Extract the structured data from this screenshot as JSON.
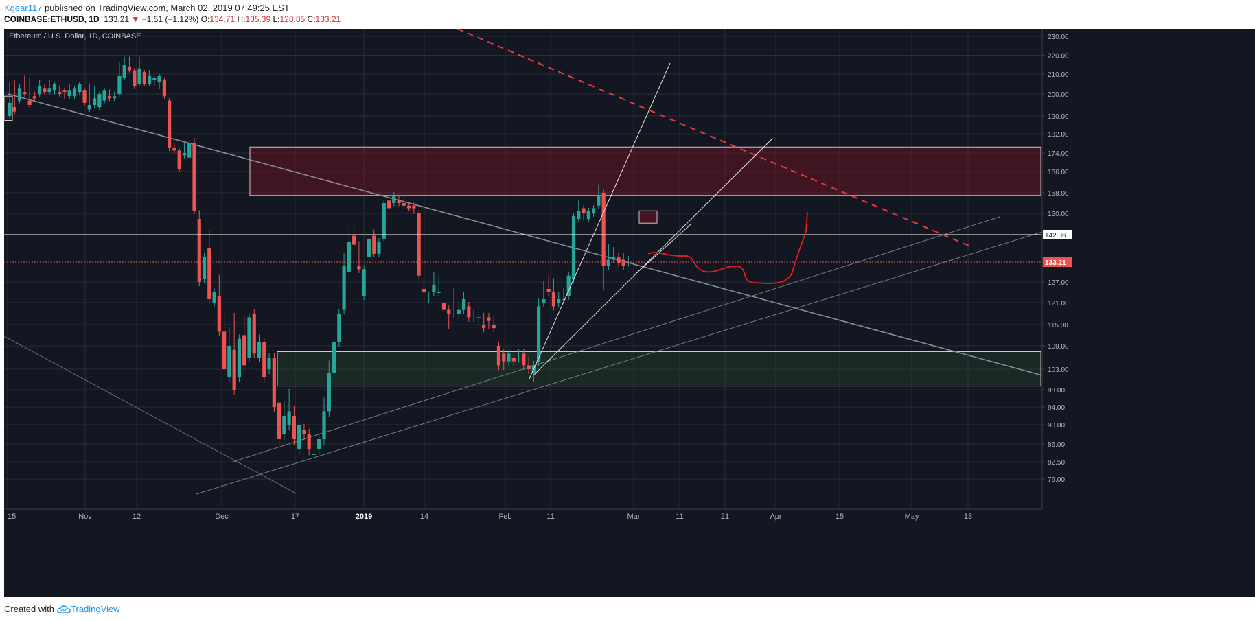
{
  "header": {
    "user": "Kgear117",
    "published_text": "published on TradingView.com, March 02, 2019 07:49:25 EST",
    "symbol": "COINBASE:ETHUSD, 1D",
    "last": "133.21",
    "change_arrow": "▼",
    "change": "−1.51 (−1.12%)",
    "o_label": "O:",
    "o": "134.71",
    "h_label": "H:",
    "h": "135.39",
    "l_label": "L:",
    "l": "128.85",
    "c_label": "C:",
    "c": "133.21"
  },
  "footer": {
    "created_with": "Created with",
    "brand": "TradingView"
  },
  "colors": {
    "background": "#131722",
    "grid": "#2a2e39",
    "up": "#26a69a",
    "down": "#ef5350",
    "axis_text": "#b2b5be"
  },
  "chart_data": {
    "type": "candlestick",
    "title": "Ethereum / U.S. Dollar, 1D, COINBASE",
    "y_ticks": [
      "230.00",
      "220.00",
      "210.00",
      "200.00",
      "190.00",
      "182.00",
      "174.00",
      "166.00",
      "158.00",
      "150.00",
      "142.36",
      "133.21",
      "127.00",
      "121.00",
      "115.00",
      "109.00",
      "103.00",
      "98.00",
      "94.00",
      "90.00",
      "86.00",
      "82.50",
      "79.00"
    ],
    "x_ticks": [
      "15",
      "Nov",
      "12",
      "Dec",
      "17",
      "2019",
      "14",
      "Feb",
      "11",
      "Mar",
      "11",
      "21",
      "Apr",
      "15",
      "May",
      "13"
    ],
    "x_ticks_bold": [
      "2019"
    ],
    "last_price": 133.21,
    "horizontal_line": 142.36,
    "zones": [
      {
        "name": "resistance-zone",
        "low": 157,
        "high": 176.5
      },
      {
        "name": "support-zone",
        "low": 98.9,
        "high": 107.5
      }
    ],
    "candles": [
      [
        190,
        205,
        196
      ],
      [
        194,
        206,
        192
      ],
      [
        197,
        204,
        203
      ],
      [
        201,
        208,
        200
      ],
      [
        197,
        207,
        195
      ],
      [
        199,
        200,
        198
      ],
      [
        200,
        206,
        204
      ],
      [
        203,
        204,
        201
      ],
      [
        201,
        206,
        203
      ],
      [
        202,
        201,
        205
      ],
      [
        201,
        203,
        200
      ],
      [
        202,
        199,
        201
      ],
      [
        199,
        204,
        202
      ],
      [
        199,
        201,
        203
      ],
      [
        201,
        202,
        205
      ],
      [
        202,
        202,
        196
      ],
      [
        193,
        204,
        195
      ],
      [
        195,
        203,
        198
      ],
      [
        194,
        197,
        200
      ],
      [
        197,
        199,
        202
      ],
      [
        199,
        201,
        198
      ],
      [
        198,
        200,
        199
      ],
      [
        200,
        215,
        209
      ],
      [
        208,
        218,
        215
      ],
      [
        214,
        218,
        212
      ],
      [
        212,
        212,
        204
      ],
      [
        205,
        218,
        213
      ],
      [
        211,
        209,
        205
      ],
      [
        205,
        211,
        209
      ],
      [
        207,
        205,
        208
      ],
      [
        206,
        204,
        209
      ],
      [
        207,
        199,
        199
      ],
      [
        197,
        186,
        176
      ],
      [
        176,
        177,
        175
      ],
      [
        175,
        175,
        167
      ],
      [
        173,
        177,
        174
      ],
      [
        172,
        178,
        178
      ],
      [
        178,
        179,
        151
      ],
      [
        148,
        150,
        127
      ],
      [
        128,
        129,
        135
      ],
      [
        138,
        143,
        122
      ],
      [
        121,
        122,
        124
      ],
      [
        123,
        128,
        113
      ],
      [
        113,
        118,
        103
      ],
      [
        101,
        113,
        109
      ],
      [
        108,
        117,
        98
      ],
      [
        101,
        111,
        111
      ],
      [
        112,
        116,
        104
      ],
      [
        106,
        113,
        117
      ],
      [
        118,
        107,
        107
      ],
      [
        106,
        111,
        110
      ],
      [
        110,
        101,
        101
      ],
      [
        103,
        106,
        106
      ],
      [
        106,
        100,
        94
      ],
      [
        95,
        89,
        87
      ],
      [
        88,
        94,
        92
      ],
      [
        90,
        97,
        93
      ],
      [
        92,
        93,
        87
      ],
      [
        85,
        89,
        90
      ],
      [
        89,
        89,
        88
      ],
      [
        88,
        86,
        85
      ],
      [
        84,
        85,
        84
      ],
      [
        85,
        86,
        87
      ],
      [
        87,
        95,
        93
      ],
      [
        93,
        104,
        102
      ],
      [
        102,
        106,
        110
      ],
      [
        110,
        116,
        118
      ],
      [
        119,
        135,
        132
      ],
      [
        130,
        144,
        140
      ],
      [
        142,
        144,
        139
      ],
      [
        132,
        139,
        131
      ],
      [
        123,
        131,
        131
      ],
      [
        135,
        137,
        141
      ],
      [
        142,
        143,
        136
      ],
      [
        136,
        140,
        140
      ],
      [
        141,
        150,
        154
      ],
      [
        155,
        156,
        152
      ],
      [
        154,
        155,
        157
      ],
      [
        155,
        156,
        154
      ],
      [
        154,
        156,
        153
      ],
      [
        153,
        152,
        152
      ],
      [
        153,
        151,
        152
      ],
      [
        150,
        133,
        129
      ],
      [
        125,
        127,
        124
      ],
      [
        123,
        122,
        123
      ],
      [
        124,
        129,
        126
      ],
      [
        124,
        128,
        124
      ],
      [
        121,
        125,
        119
      ],
      [
        119,
        115,
        118
      ],
      [
        118,
        124,
        118
      ],
      [
        118,
        120,
        119
      ],
      [
        119,
        123,
        122
      ],
      [
        120,
        120,
        117
      ],
      [
        118,
        117,
        118
      ],
      [
        117,
        116,
        117
      ],
      [
        115,
        117,
        114
      ],
      [
        117,
        115,
        116
      ],
      [
        115,
        116,
        114
      ],
      [
        109,
        108,
        104
      ],
      [
        107,
        104,
        105
      ],
      [
        105,
        106,
        107
      ],
      [
        106,
        106,
        105
      ],
      [
        106,
        107,
        106
      ],
      [
        107,
        105,
        104
      ],
      [
        104,
        105,
        103
      ],
      [
        102,
        101,
        104
      ],
      [
        105,
        121,
        120
      ],
      [
        121,
        126,
        122
      ],
      [
        125,
        128,
        124
      ],
      [
        124,
        127,
        120
      ],
      [
        121,
        123,
        122
      ],
      [
        122,
        124,
        122
      ],
      [
        123,
        124,
        129
      ],
      [
        128,
        147,
        149
      ],
      [
        148,
        154,
        151
      ],
      [
        152,
        149,
        150
      ],
      [
        148,
        148,
        151
      ],
      [
        150,
        150,
        152
      ],
      [
        153,
        160,
        157
      ],
      [
        158,
        126,
        132
      ],
      [
        132,
        138,
        134
      ],
      [
        134,
        137,
        135
      ],
      [
        135,
        134,
        133
      ],
      [
        134,
        135,
        132
      ],
      [
        133,
        134,
        133
      ]
    ]
  }
}
